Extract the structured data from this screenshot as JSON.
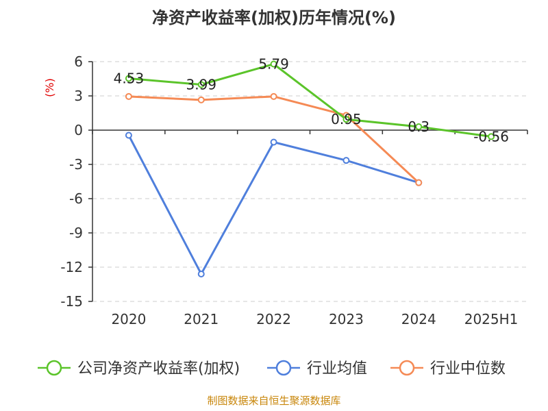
{
  "chart_data": {
    "type": "line",
    "title": "净资产收益率(加权)历年情况(%)",
    "ylabel": "(%)",
    "xlabel": "",
    "categories": [
      "2020",
      "2021",
      "2022",
      "2023",
      "2024",
      "2025H1"
    ],
    "ylim": [
      -15,
      6
    ],
    "yticks": [
      6,
      3,
      0,
      -3,
      -6,
      -9,
      -12,
      -15
    ],
    "grid": true,
    "legend_position": "bottom",
    "series": [
      {
        "name": "公司净资产收益率(加权)",
        "color": "#5bc42a",
        "values": [
          4.53,
          3.99,
          5.79,
          0.95,
          0.3,
          -0.56
        ],
        "labels": [
          "4.53",
          "3.99",
          "5.79",
          "0.95",
          "0.3",
          "-0.56"
        ]
      },
      {
        "name": "行业均值",
        "color": "#4f7fdc",
        "values": [
          -0.45,
          -12.6,
          -1.05,
          -2.65,
          -4.6,
          null
        ],
        "labels": null
      },
      {
        "name": "行业中位数",
        "color": "#f58a55",
        "values": [
          2.95,
          2.65,
          2.95,
          1.3,
          -4.6,
          null
        ],
        "labels": null
      }
    ]
  },
  "source": "制图数据来自恒生聚源数据库"
}
